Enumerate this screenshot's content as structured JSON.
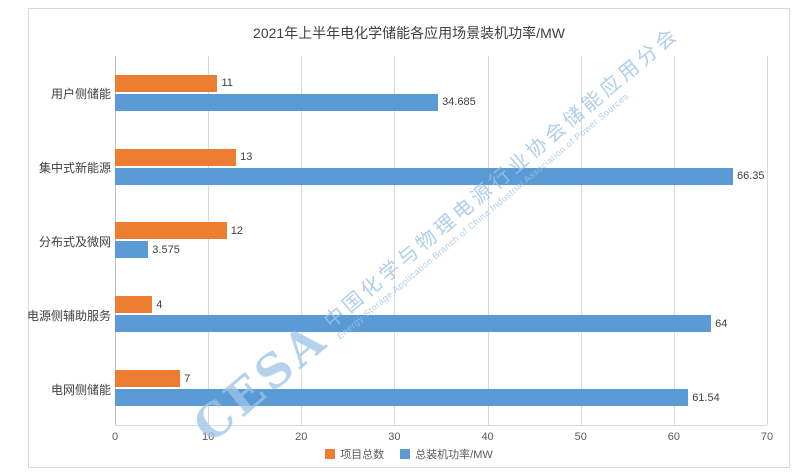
{
  "title": "2021年上半年电化学储能各应用场景装机功率/MW",
  "watermark": {
    "logo": "CESA",
    "cn": "中国化学与物理电源行业协会储能应用分会",
    "en": "Energy Storage Application Branch of China Industrial Association of Power Sources"
  },
  "colors": {
    "projects_series": "#ED7D31",
    "power_series": "#5B9BD5",
    "gridline": "#D9D9D9",
    "text": "#404040",
    "watermark": "#9DC3E6"
  },
  "chart_data": {
    "type": "bar",
    "orientation": "horizontal",
    "title": "2021年上半年电化学储能各应用场景装机功率/MW",
    "categories": [
      "用户侧储能",
      "集中式新能源",
      "分布式及微网",
      "电源侧辅助服务",
      "电网侧储能"
    ],
    "series": [
      {
        "name": "项目总数",
        "color": "#ED7D31",
        "values": [
          11,
          13,
          12,
          4,
          7
        ]
      },
      {
        "name": "总装机功率/MW",
        "color": "#5B9BD5",
        "values": [
          34.685,
          66.35,
          3.575,
          64,
          61.54
        ]
      }
    ],
    "xlim": [
      0,
      70
    ],
    "xticks": [
      0,
      10,
      20,
      30,
      40,
      50,
      60,
      70
    ],
    "grid": true,
    "legend_position": "bottom"
  }
}
